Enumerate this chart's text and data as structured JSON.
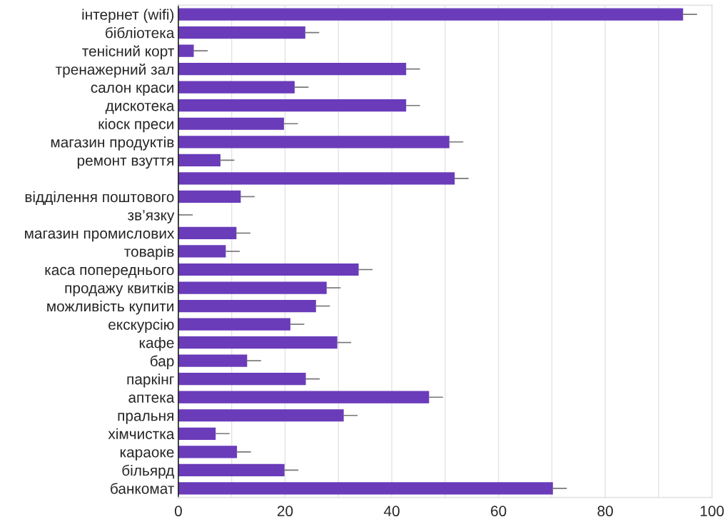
{
  "chart_data": {
    "type": "bar",
    "orientation": "horizontal",
    "categories": [
      "інтернет (wifi)",
      "бібліотека",
      "тенісний корт",
      "тренажерний зал",
      "салон краси",
      "дискотека",
      "кіоск преси",
      "магазин продуктів",
      "ремонт взуття",
      null,
      "відділення поштового",
      "зв’язку",
      "магазин промислових",
      "товарів",
      "каса попереднього",
      "продажу квитків",
      "можливість купити",
      "екскурсію",
      "кафе",
      "бар",
      "паркінг",
      "аптека",
      "пральня",
      "хімчистка",
      "караоке",
      "більярд",
      "банкомат"
    ],
    "values": [
      94.5,
      23.7,
      2.8,
      42.6,
      21.7,
      42.6,
      19.7,
      50.7,
      7.8,
      51.7,
      11.6,
      0,
      10.8,
      8.8,
      33.7,
      27.7,
      25.7,
      20.9,
      29.7,
      12.8,
      23.8,
      46.9,
      30.9,
      6.9,
      10.9,
      19.8,
      70.1
    ],
    "errors": [
      [
        94.5,
        97.2
      ],
      [
        23.7,
        26.4
      ],
      [
        2.8,
        5.5
      ],
      [
        42.6,
        45.3
      ],
      [
        21.7,
        24.4
      ],
      [
        42.6,
        45.3
      ],
      [
        19.7,
        22.4
      ],
      [
        50.7,
        53.4
      ],
      [
        7.8,
        10.5
      ],
      [
        51.7,
        54.4
      ],
      [
        11.6,
        14.3
      ],
      [
        0,
        2.7
      ],
      [
        10.8,
        13.5
      ],
      [
        8.8,
        11.5
      ],
      [
        33.7,
        36.4
      ],
      [
        27.7,
        30.4
      ],
      [
        25.7,
        28.4
      ],
      [
        20.9,
        23.6
      ],
      [
        29.7,
        32.4
      ],
      [
        12.8,
        15.5
      ],
      [
        23.8,
        26.5
      ],
      [
        46.9,
        49.6
      ],
      [
        30.9,
        33.6
      ],
      [
        6.9,
        9.6
      ],
      [
        10.9,
        13.6
      ],
      [
        19.8,
        22.5
      ],
      [
        70.1,
        72.8
      ]
    ],
    "color": "#6a3cba",
    "xlim": [
      0,
      100
    ],
    "xticks": [
      0,
      {
        "value": 10,
        "label": null
      },
      20,
      {
        "value": 30,
        "label": null
      },
      40,
      {
        "value": 50,
        "label": null
      },
      60,
      {
        "value": 70,
        "label": null
      },
      80,
      {
        "value": 90,
        "label": null
      },
      100
    ],
    "grid": "x"
  }
}
